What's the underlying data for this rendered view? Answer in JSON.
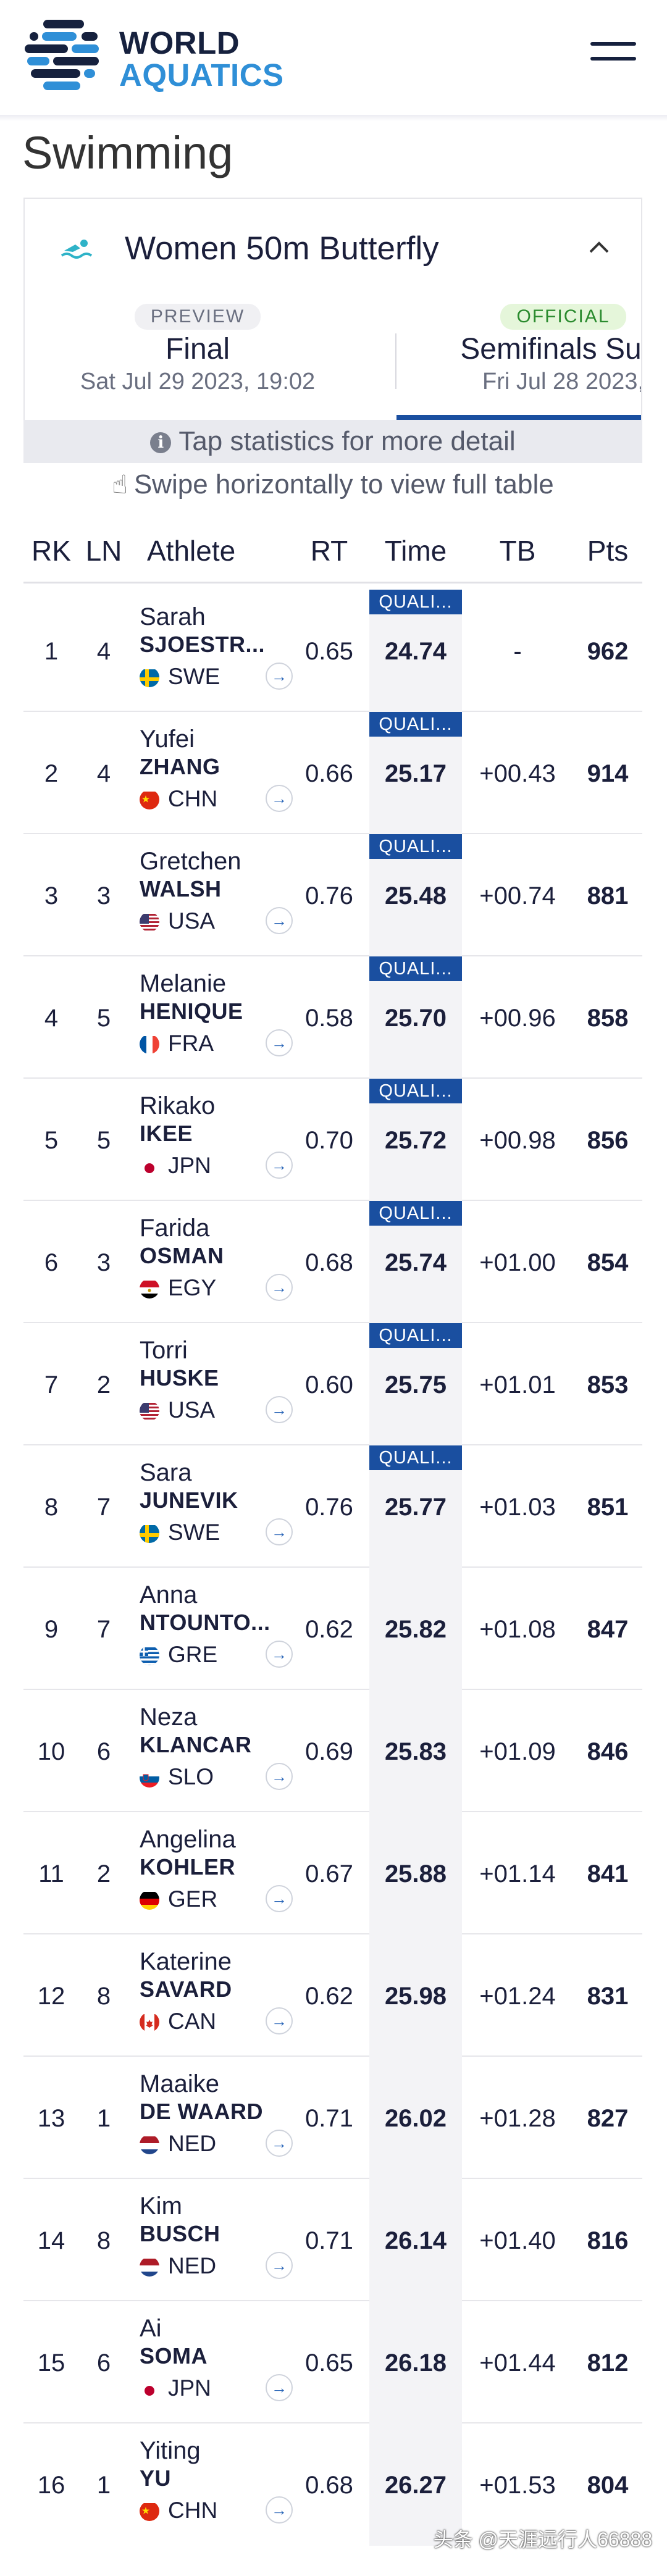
{
  "header": {
    "logo_line1": "WORLD",
    "logo_line2": "AQUATICS",
    "menu_icon": "hamburger-icon"
  },
  "page_title": "Swimming",
  "event": {
    "title": "Women 50m Butterfly",
    "icon": "swimmer-icon",
    "toggle_icon": "chevron-up-icon"
  },
  "phases": [
    {
      "badge": "PREVIEW",
      "name": "Final",
      "date": "Sat Jul 29 2023, 19:02"
    },
    {
      "badge": "OFFICIAL",
      "name": "Semifinals Sum",
      "date": "Fri Jul 28 2023,"
    }
  ],
  "hints": {
    "tap": "Tap statistics for more detail",
    "swipe": "Swipe horizontally to view full table"
  },
  "table": {
    "columns": [
      "RK",
      "LN",
      "Athlete",
      "RT",
      "Time",
      "TB",
      "Pts"
    ],
    "rows": [
      {
        "rk": "1",
        "ln": "4",
        "first": "Sarah",
        "last": "SJOESTR...",
        "noc": "SWE",
        "rt": "0.65",
        "q": "QUALI...",
        "time": "24.74",
        "tb": "-",
        "pts": "962"
      },
      {
        "rk": "2",
        "ln": "4",
        "first": "Yufei",
        "last": "ZHANG",
        "noc": "CHN",
        "rt": "0.66",
        "q": "QUALI...",
        "time": "25.17",
        "tb": "+00.43",
        "pts": "914"
      },
      {
        "rk": "3",
        "ln": "3",
        "first": "Gretchen",
        "last": "WALSH",
        "noc": "USA",
        "rt": "0.76",
        "q": "QUALI...",
        "time": "25.48",
        "tb": "+00.74",
        "pts": "881"
      },
      {
        "rk": "4",
        "ln": "5",
        "first": "Melanie",
        "last": "HENIQUE",
        "noc": "FRA",
        "rt": "0.58",
        "q": "QUALI...",
        "time": "25.70",
        "tb": "+00.96",
        "pts": "858"
      },
      {
        "rk": "5",
        "ln": "5",
        "first": "Rikako",
        "last": "IKEE",
        "noc": "JPN",
        "rt": "0.70",
        "q": "QUALI...",
        "time": "25.72",
        "tb": "+00.98",
        "pts": "856"
      },
      {
        "rk": "6",
        "ln": "3",
        "first": "Farida",
        "last": "OSMAN",
        "noc": "EGY",
        "rt": "0.68",
        "q": "QUALI...",
        "time": "25.74",
        "tb": "+01.00",
        "pts": "854"
      },
      {
        "rk": "7",
        "ln": "2",
        "first": "Torri",
        "last": "HUSKE",
        "noc": "USA",
        "rt": "0.60",
        "q": "QUALI...",
        "time": "25.75",
        "tb": "+01.01",
        "pts": "853"
      },
      {
        "rk": "8",
        "ln": "7",
        "first": "Sara",
        "last": "JUNEVIK",
        "noc": "SWE",
        "rt": "0.76",
        "q": "QUALI...",
        "time": "25.77",
        "tb": "+01.03",
        "pts": "851"
      },
      {
        "rk": "9",
        "ln": "7",
        "first": "Anna",
        "last": "NTOUNTO...",
        "noc": "GRE",
        "rt": "0.62",
        "q": "",
        "time": "25.82",
        "tb": "+01.08",
        "pts": "847"
      },
      {
        "rk": "10",
        "ln": "6",
        "first": "Neza",
        "last": "KLANCAR",
        "noc": "SLO",
        "rt": "0.69",
        "q": "",
        "time": "25.83",
        "tb": "+01.09",
        "pts": "846"
      },
      {
        "rk": "11",
        "ln": "2",
        "first": "Angelina",
        "last": "KOHLER",
        "noc": "GER",
        "rt": "0.67",
        "q": "",
        "time": "25.88",
        "tb": "+01.14",
        "pts": "841"
      },
      {
        "rk": "12",
        "ln": "8",
        "first": "Katerine",
        "last": "SAVARD",
        "noc": "CAN",
        "rt": "0.62",
        "q": "",
        "time": "25.98",
        "tb": "+01.24",
        "pts": "831"
      },
      {
        "rk": "13",
        "ln": "1",
        "first": "Maaike",
        "last": "DE WAARD",
        "noc": "NED",
        "rt": "0.71",
        "q": "",
        "time": "26.02",
        "tb": "+01.28",
        "pts": "827"
      },
      {
        "rk": "14",
        "ln": "8",
        "first": "Kim",
        "last": "BUSCH",
        "noc": "NED",
        "rt": "0.71",
        "q": "",
        "time": "26.14",
        "tb": "+01.40",
        "pts": "816"
      },
      {
        "rk": "15",
        "ln": "6",
        "first": "Ai",
        "last": "SOMA",
        "noc": "JPN",
        "rt": "0.65",
        "q": "",
        "time": "26.18",
        "tb": "+01.44",
        "pts": "812"
      },
      {
        "rk": "16",
        "ln": "1",
        "first": "Yiting",
        "last": "YU",
        "noc": "CHN",
        "rt": "0.68",
        "q": "",
        "time": "26.27",
        "tb": "+01.53",
        "pts": "804"
      }
    ]
  },
  "watermark": "头条 @天涯远行人66888",
  "colors": {
    "navy": "#16213e",
    "brand_blue": "#2f8fd7",
    "qualified": "#1a4fa0",
    "official_green": "#2a8b2e"
  }
}
